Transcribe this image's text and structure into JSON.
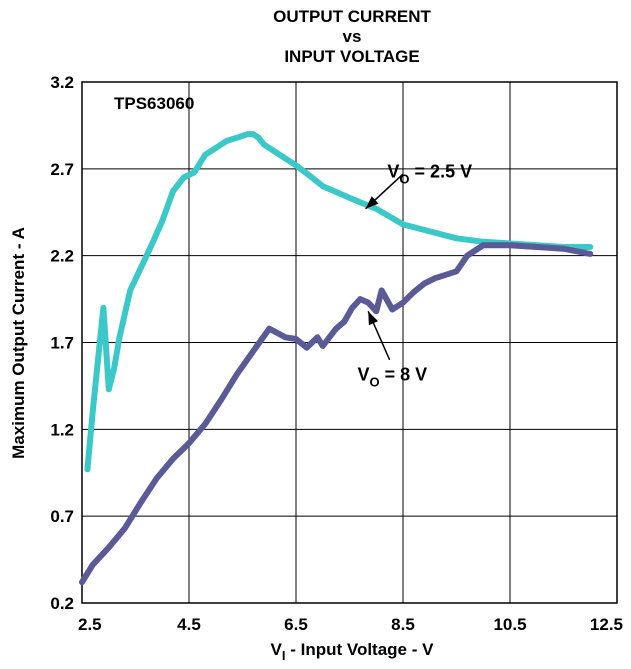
{
  "chart_data": {
    "type": "line",
    "title_lines": [
      "OUTPUT CURRENT",
      "vs",
      "INPUT VOLTAGE"
    ],
    "xlabel": {
      "main": "V",
      "sub": "I",
      "rest": " - Input Voltage - V"
    },
    "ylabel": "Maximum Output Current - A",
    "xlim": [
      2.5,
      12.5
    ],
    "ylim": [
      0.2,
      3.2
    ],
    "x_ticks": [
      "2.5",
      "4.5",
      "6.5",
      "8.5",
      "10.5",
      "12.5"
    ],
    "y_ticks": [
      "3.2",
      "2.7",
      "2.2",
      "1.7",
      "1.2",
      "0.7",
      "0.2"
    ],
    "grid": true,
    "device_label": "TPS63060",
    "series": [
      {
        "color": "#3cc8c8",
        "x": [
          2.6,
          2.7,
          2.8,
          2.9,
          3.0,
          3.1,
          3.2,
          3.4,
          3.6,
          3.8,
          4.0,
          4.2,
          4.4,
          4.6,
          4.8,
          5.0,
          5.2,
          5.4,
          5.6,
          5.7,
          5.8,
          5.9,
          6.0,
          6.2,
          6.5,
          6.8,
          7.0,
          7.3,
          7.6,
          8.0,
          8.5,
          9.0,
          9.5,
          10.0,
          10.5,
          11.0,
          11.5,
          12.0
        ],
        "y": [
          0.97,
          1.3,
          1.6,
          1.9,
          1.43,
          1.55,
          1.73,
          2.0,
          2.13,
          2.26,
          2.4,
          2.57,
          2.65,
          2.68,
          2.78,
          2.82,
          2.86,
          2.88,
          2.9,
          2.9,
          2.88,
          2.84,
          2.82,
          2.78,
          2.72,
          2.65,
          2.6,
          2.56,
          2.52,
          2.47,
          2.38,
          2.34,
          2.3,
          2.28,
          2.27,
          2.26,
          2.25,
          2.25
        ]
      },
      {
        "color": "#5a5a96",
        "x": [
          2.5,
          2.7,
          3.0,
          3.3,
          3.6,
          3.9,
          4.2,
          4.5,
          4.8,
          5.1,
          5.4,
          5.7,
          6.0,
          6.3,
          6.5,
          6.7,
          6.9,
          7.0,
          7.1,
          7.25,
          7.4,
          7.55,
          7.7,
          7.85,
          8.0,
          8.1,
          8.3,
          8.5,
          8.7,
          8.9,
          9.1,
          9.3,
          9.5,
          9.7,
          10.0,
          10.5,
          11.0,
          11.5,
          12.0
        ],
        "y": [
          0.32,
          0.42,
          0.52,
          0.63,
          0.78,
          0.92,
          1.03,
          1.12,
          1.23,
          1.37,
          1.52,
          1.65,
          1.78,
          1.73,
          1.72,
          1.67,
          1.73,
          1.68,
          1.72,
          1.78,
          1.82,
          1.9,
          1.95,
          1.93,
          1.88,
          2.0,
          1.89,
          1.93,
          1.99,
          2.04,
          2.07,
          2.09,
          2.11,
          2.2,
          2.26,
          2.26,
          2.25,
          2.24,
          2.21
        ]
      }
    ],
    "annotations": [
      {
        "main": "V",
        "sub": "O",
        "rest": " = 2.5 V",
        "x": 9.0,
        "y": 2.65,
        "arrow_to": [
          7.8,
          2.47
        ],
        "arrow_from": [
          8.5,
          2.67
        ]
      },
      {
        "main": "V",
        "sub": "O",
        "rest": " = 8 V",
        "x": 8.3,
        "y": 1.48,
        "arrow_to": [
          7.85,
          1.88
        ],
        "arrow_from": [
          8.25,
          1.6
        ]
      }
    ]
  }
}
